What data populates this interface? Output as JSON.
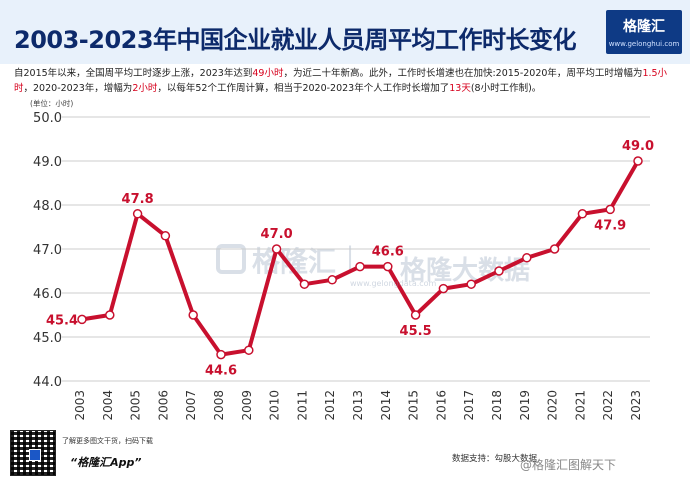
{
  "header": {
    "title": "2003-2023年中国企业就业人员周平均工作时长变化",
    "logo_name": "格隆汇",
    "logo_url": "www.gelonghui.com"
  },
  "description": {
    "parts": [
      {
        "text": "自2015年以来，全国周平均工时逐步上涨，2023年达到",
        "highlight": false
      },
      {
        "text": "49小时",
        "highlight": true
      },
      {
        "text": "，为近二十年新高。此外，工作时长增速也在加快:2015-2020年，周平均工时增幅为",
        "highlight": false
      },
      {
        "text": "1.5小时",
        "highlight": true
      },
      {
        "text": "，2020-2023年，增幅为",
        "highlight": false
      },
      {
        "text": "2小时",
        "highlight": true
      },
      {
        "text": "，以每年52个工作周计算，相当于2020-2023年个人工作时长增加了",
        "highlight": false
      },
      {
        "text": "13天",
        "highlight": true
      },
      {
        "text": "(8小时工作制)。",
        "highlight": false
      }
    ]
  },
  "unit_label": "(单位：小时)",
  "watermark": {
    "brand": "格隆汇",
    "sep": "|",
    "product": "格隆大数据",
    "url": "www.gelongdata.com"
  },
  "footer": {
    "scan_text": "了解更多图文干货，扫码下载",
    "app_name": "“格隆汇App”",
    "source": "数据支持：勾股大数据",
    "weibo": "@格隆汇图解天下"
  },
  "colors": {
    "line": "#c8102e",
    "grid": "#cccccc",
    "axis_text": "#333333",
    "title": "#0d2a6b",
    "highlight": "#d6001c"
  },
  "chart_data": {
    "type": "line",
    "title": "2003-2023年中国企业就业人员周平均工作时长变化",
    "ylabel": "(单位：小时)",
    "xlabel": "",
    "categories": [
      "2003",
      "2004",
      "2005",
      "2006",
      "2007",
      "2008",
      "2009",
      "2010",
      "2011",
      "2012",
      "2013",
      "2014",
      "2015",
      "2016",
      "2017",
      "2018",
      "2019",
      "2020",
      "2021",
      "2022",
      "2023"
    ],
    "values": [
      45.4,
      45.5,
      47.8,
      47.3,
      45.5,
      44.6,
      44.7,
      47.0,
      46.2,
      46.3,
      46.6,
      46.6,
      45.5,
      46.1,
      46.2,
      46.5,
      46.8,
      47.0,
      47.8,
      47.9,
      49.0
    ],
    "ylim": [
      44.0,
      50.0
    ],
    "yticks": [
      "44.0",
      "45.0",
      "46.0",
      "47.0",
      "48.0",
      "49.0",
      "50.0"
    ],
    "grid": "horizontal",
    "annotations": [
      {
        "index": 0,
        "label": "45.4"
      },
      {
        "index": 2,
        "label": "47.8"
      },
      {
        "index": 5,
        "label": "44.6"
      },
      {
        "index": 7,
        "label": "47.0"
      },
      {
        "index": 11,
        "label": "46.6"
      },
      {
        "index": 12,
        "label": "45.5"
      },
      {
        "index": 19,
        "label": "47.9"
      },
      {
        "index": 20,
        "label": "49.0"
      }
    ]
  }
}
